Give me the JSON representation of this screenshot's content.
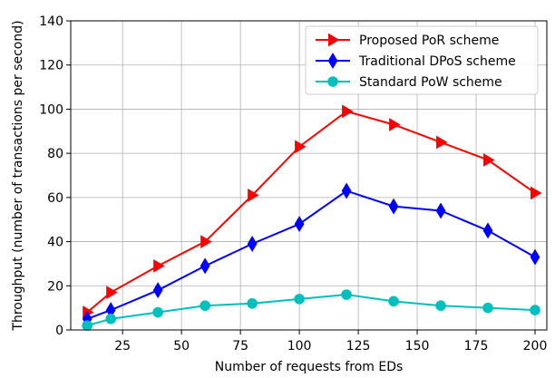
{
  "chart_data": {
    "type": "line",
    "title": "",
    "xlabel": "Number of requests from EDs",
    "ylabel": "Throughput (number of transactions per second)",
    "xlim": [
      3,
      205
    ],
    "ylim": [
      0,
      140
    ],
    "xticks": [
      25,
      50,
      75,
      100,
      125,
      150,
      175,
      200
    ],
    "yticks": [
      0,
      20,
      40,
      60,
      80,
      100,
      120,
      140
    ],
    "grid": true,
    "legend_position": "top-right",
    "x": [
      10,
      20,
      40,
      60,
      80,
      100,
      120,
      140,
      160,
      180,
      200
    ],
    "series": [
      {
        "name": "Proposed PoR scheme",
        "color": "#ff0000",
        "marker": "triangle-right",
        "values": [
          8,
          17,
          29,
          40,
          61,
          83,
          99,
          93,
          85,
          77,
          62
        ]
      },
      {
        "name": "Traditional DPoS scheme",
        "color": "#0000ff",
        "marker": "thin-diamond",
        "values": [
          5,
          9,
          18,
          29,
          39,
          48,
          63,
          56,
          54,
          45,
          33
        ]
      },
      {
        "name": "Standard PoW scheme",
        "color": "#00bfbf",
        "marker": "circle",
        "values": [
          2,
          5,
          8,
          11,
          12,
          14,
          16,
          13,
          11,
          10,
          9
        ]
      }
    ]
  }
}
